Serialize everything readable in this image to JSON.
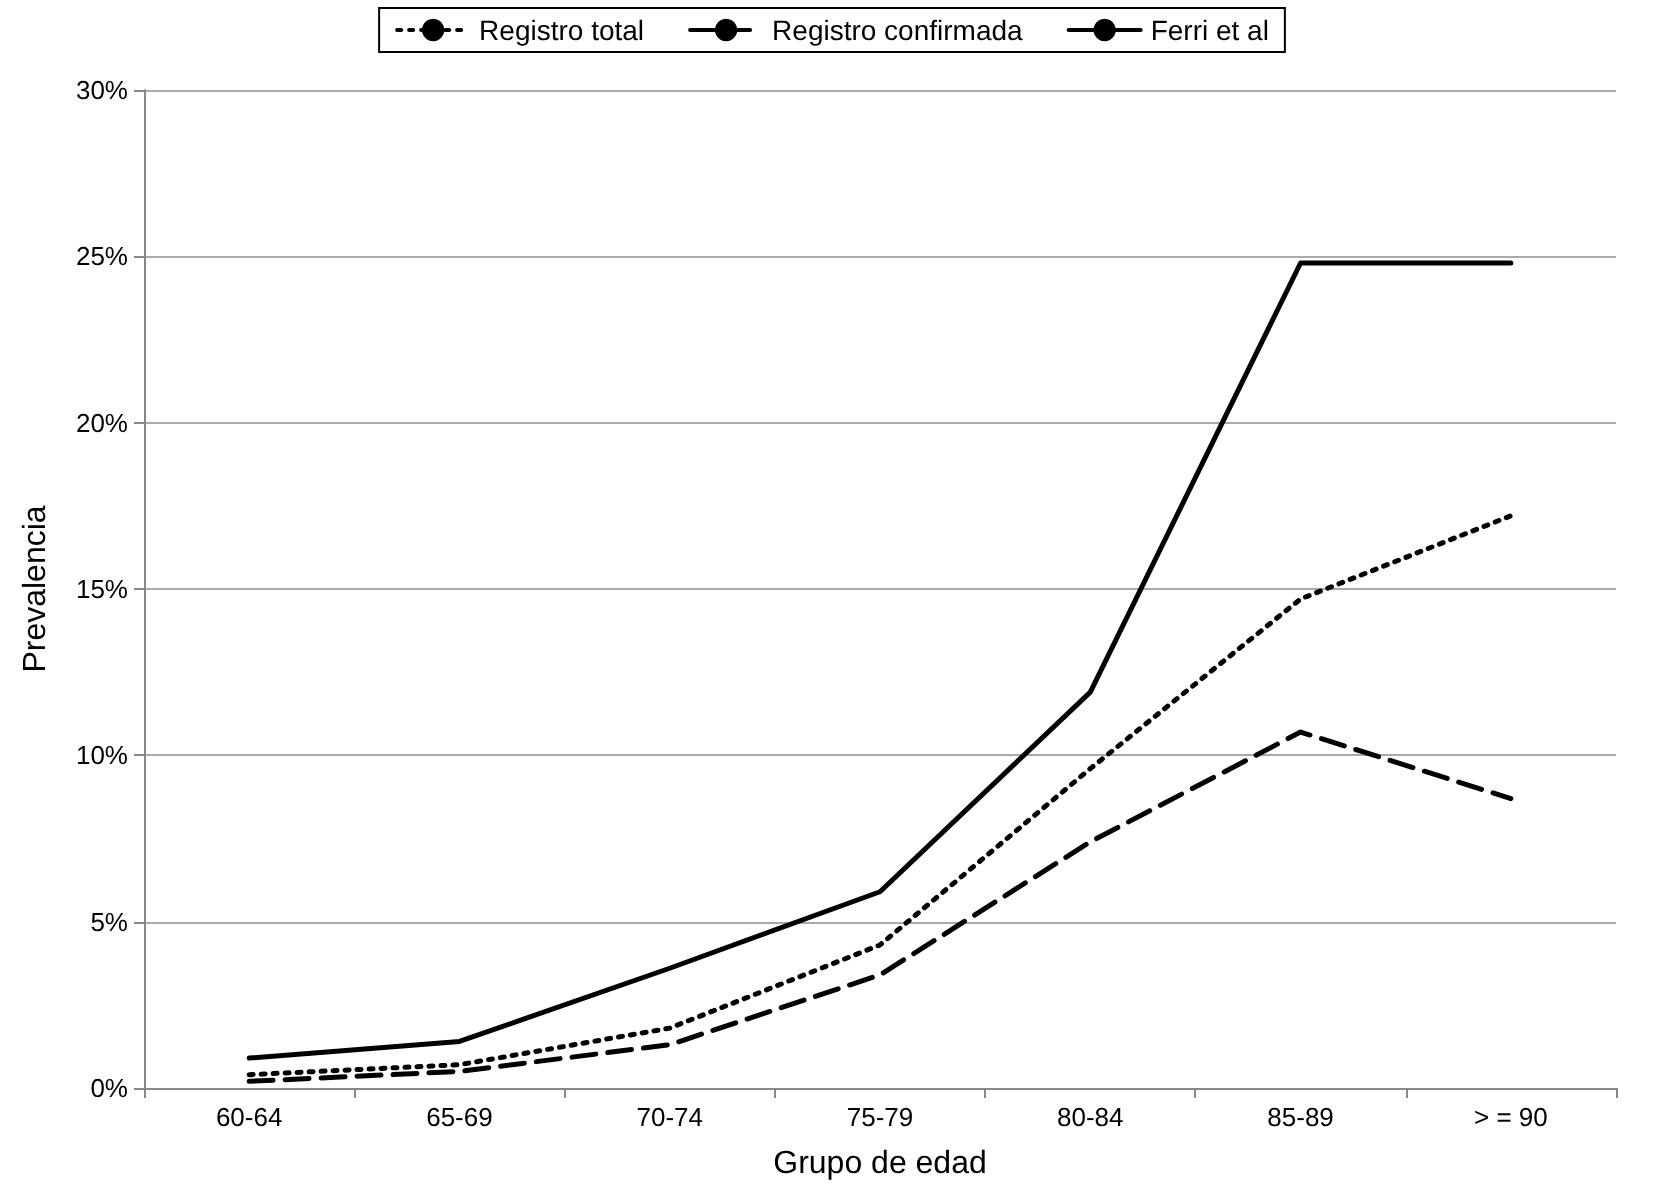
{
  "chart_data": {
    "type": "line",
    "xlabel": "Grupo de edad",
    "ylabel": "Prevalencia",
    "categories": [
      "60-64",
      "65-69",
      "70-74",
      "75-79",
      "80-84",
      "85-89",
      "> = 90"
    ],
    "series": [
      {
        "name": "Registro total",
        "color": "#000000",
        "line_style": "dotted",
        "values": [
          0.4,
          0.7,
          1.8,
          4.3,
          9.6,
          14.7,
          17.2
        ]
      },
      {
        "name": "Registro confirmada",
        "color": "#000000",
        "line_style": "dashed",
        "values": [
          0.2,
          0.5,
          1.3,
          3.4,
          7.4,
          10.7,
          8.7
        ]
      },
      {
        "name": "Ferri et al",
        "color": "#000000",
        "line_style": "solid",
        "values": [
          0.9,
          1.4,
          3.6,
          5.9,
          11.9,
          24.8,
          24.8
        ]
      }
    ],
    "ylim": [
      0,
      30
    ],
    "yticks": [
      {
        "value": 0,
        "label": "0%"
      },
      {
        "value": 5,
        "label": "5%"
      },
      {
        "value": 10,
        "label": "10%"
      },
      {
        "value": 15,
        "label": "15%"
      },
      {
        "value": 20,
        "label": "20%"
      },
      {
        "value": 25,
        "label": "25%"
      },
      {
        "value": 30,
        "label": "30%"
      }
    ],
    "grid": "y",
    "legend": "top",
    "marker": "none"
  }
}
